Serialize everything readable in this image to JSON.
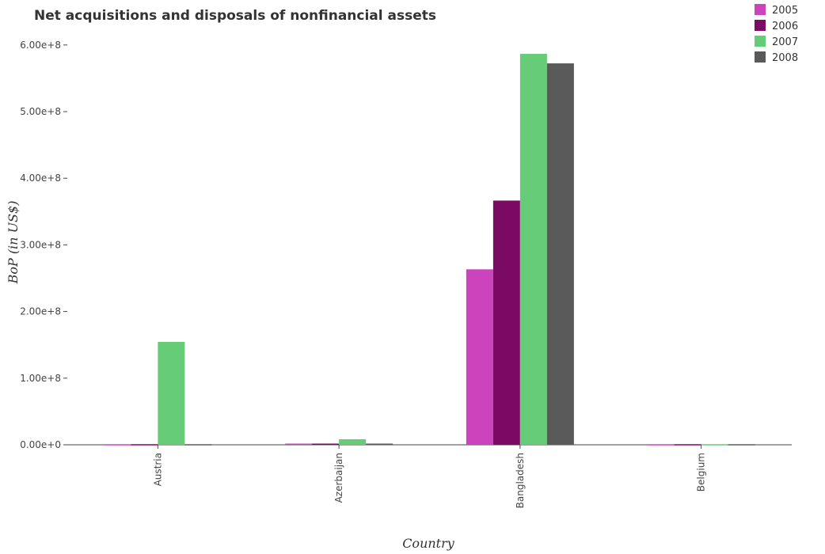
{
  "chart_data": {
    "type": "bar",
    "title": "Net acquisitions and disposals of nonfinancial assets",
    "xlabel": "Country",
    "ylabel": "BoP (in US$)",
    "categories": [
      "Austria",
      "Azerbaijan",
      "Bangladesh",
      "Belgium"
    ],
    "series": [
      {
        "name": "2005",
        "color": "#cc44bb",
        "values": [
          0,
          50000,
          263300000,
          0
        ]
      },
      {
        "name": "2006",
        "color": "#7a0a63",
        "values": [
          0,
          450000,
          366500000,
          0
        ]
      },
      {
        "name": "2007",
        "color": "#66cc77",
        "values": [
          154400000,
          8300000,
          586700000,
          0
        ]
      },
      {
        "name": "2008",
        "color": "#5a5a5a",
        "values": [
          0,
          150000,
          572400000,
          0
        ]
      }
    ],
    "ylim": [
      0,
      620000000
    ],
    "yticks": [
      0,
      100000000,
      200000000,
      300000000,
      400000000,
      500000000,
      600000000
    ],
    "ytick_labels": [
      "0.00e+0",
      "1.00e+8",
      "2.00e+8",
      "3.00e+8",
      "4.00e+8",
      "5.00e+8",
      "6.00e+8"
    ],
    "legend_position": "top-right",
    "grid": false
  }
}
